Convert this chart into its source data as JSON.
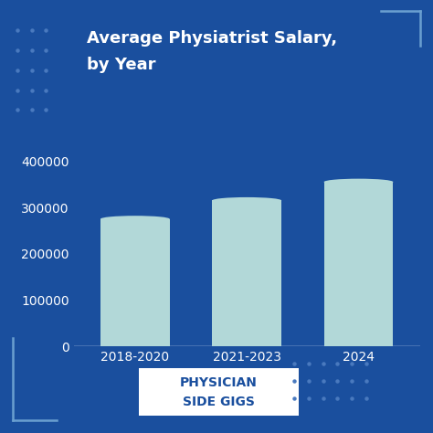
{
  "title_line1": "Average Physiatrist Salary,",
  "title_line2": "by Year",
  "categories": [
    "2018-2020",
    "2021-2023",
    "2024"
  ],
  "values": [
    275000,
    315000,
    355000
  ],
  "bar_color": "#b2d8d8",
  "background_color": "#1a4f9e",
  "text_color": "#ffffff",
  "yticks": [
    0,
    100000,
    200000,
    300000,
    400000
  ],
  "ylim": [
    0,
    430000
  ],
  "bar_width": 0.62,
  "brand_text_line1": "PHYSICIAN",
  "brand_text_line2": "SIDE GIGS",
  "brand_bg": "#ffffff",
  "brand_text_color": "#1a4f9e",
  "axis_text_color": "#ffffff",
  "corner_color": "#5a8fc8",
  "dot_color": "#4a7abf"
}
